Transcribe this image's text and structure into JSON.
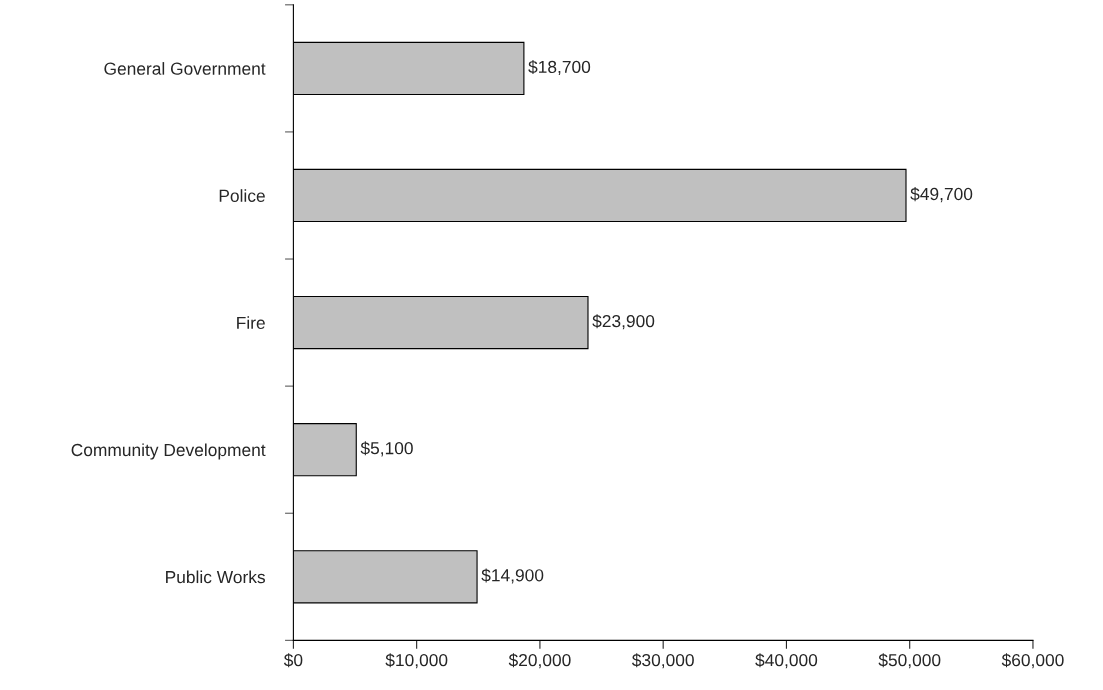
{
  "chart_data": {
    "type": "bar",
    "orientation": "horizontal",
    "categories": [
      "General Government",
      "Police",
      "Fire",
      "Community Development",
      "Public Works"
    ],
    "values": [
      18700,
      49700,
      23900,
      5100,
      14900
    ],
    "color": "#c0c0c0",
    "value_labels": [
      "$18,700",
      "$49,700",
      "$23,900",
      "$5,100",
      "$14,900"
    ],
    "xlim": [
      0,
      60000
    ],
    "xticks": [
      {
        "value": 0,
        "label": "$0"
      },
      {
        "value": 10000,
        "label": "$10,000"
      },
      {
        "value": 20000,
        "label": "$20,000"
      },
      {
        "value": 30000,
        "label": "$30,000"
      },
      {
        "value": 40000,
        "label": "$40,000"
      },
      {
        "value": 50000,
        "label": "$50,000"
      },
      {
        "value": 60000,
        "label": "$60,000"
      }
    ],
    "grid": false,
    "legend": false
  }
}
